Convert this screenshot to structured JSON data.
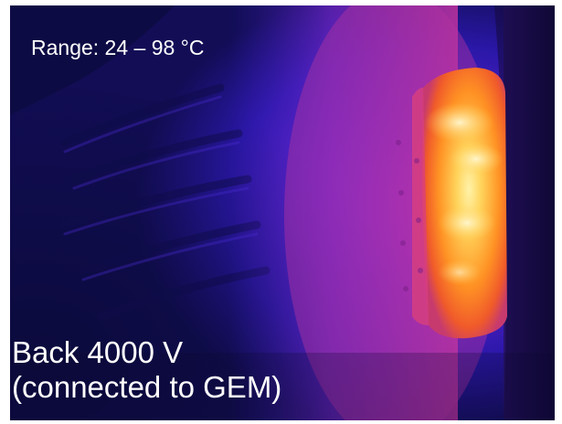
{
  "thermal_image": {
    "range_text": "Range: 24 – 98 °C",
    "caption_line1": "Back 4000 V",
    "caption_line2": "(connected to GEM)",
    "palette": {
      "cold": "#14106a",
      "cool": "#3a1fc0",
      "mid": "#8a2ad0",
      "warm": "#d6389c",
      "hot": "#ff7a1e",
      "hottest": "#ffe27a"
    }
  }
}
